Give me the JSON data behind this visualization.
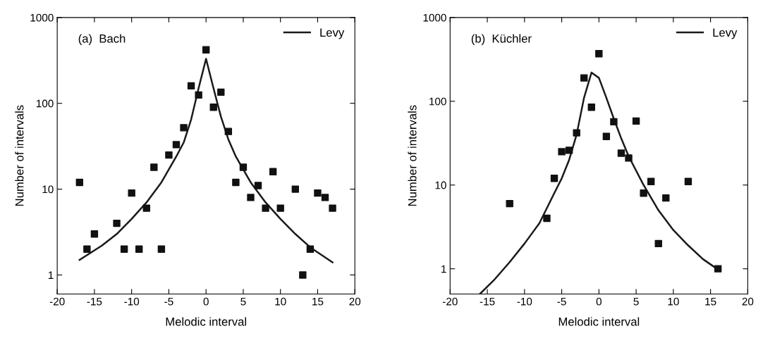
{
  "chart_data": [
    {
      "type": "scatter",
      "xlabel": "Melodic interval",
      "ylabel": "Number of intervals",
      "annotations": [
        "(a)  Bach"
      ],
      "log": "y",
      "xlim": [
        -20,
        20
      ],
      "ylim": [
        0.6,
        1000
      ],
      "xticks": [
        -20,
        -15,
        -10,
        -5,
        0,
        5,
        10,
        15,
        20
      ],
      "yticks": [
        1,
        10,
        100,
        1000
      ],
      "legend": "top right",
      "grid": false,
      "series": [
        {
          "marker": "square",
          "color": "#111111",
          "x": [
            -17,
            -16,
            -15,
            -12,
            -11,
            -10,
            -9,
            -8,
            -7,
            -6,
            -5,
            -4,
            -3,
            -2,
            -1,
            0,
            1,
            2,
            3,
            4,
            5,
            6,
            7,
            8,
            9,
            10,
            12,
            13,
            14,
            15,
            16,
            17
          ],
          "values": [
            12,
            2,
            3,
            4,
            2,
            9,
            2,
            6,
            18,
            2,
            25,
            33,
            52,
            160,
            125,
            420,
            90,
            135,
            47,
            12,
            18,
            8,
            11,
            6,
            16,
            6,
            10,
            1,
            2,
            9,
            8,
            6
          ]
        },
        {
          "type": "line",
          "name": "Levy",
          "marker": "none",
          "line_style": "solid",
          "color": "#1a1a1a",
          "x": [
            -17,
            -14,
            -12,
            -10,
            -8,
            -6,
            -4,
            -3,
            -2,
            -1,
            0,
            1,
            2,
            3,
            4,
            6,
            8,
            10,
            12,
            14,
            17
          ],
          "values": [
            1.5,
            2.2,
            3.0,
            4.5,
            7,
            12,
            24,
            35,
            65,
            150,
            330,
            150,
            70,
            38,
            24,
            12,
            7,
            4.5,
            3.0,
            2.1,
            1.4
          ]
        }
      ]
    },
    {
      "type": "scatter",
      "xlabel": "Melodic interval",
      "ylabel": "Number of intervals",
      "annotations": [
        "(b)  Küchler"
      ],
      "log": "y",
      "xlim": [
        -20,
        20
      ],
      "ylim": [
        0.5,
        1000
      ],
      "xticks": [
        -20,
        -15,
        -10,
        -5,
        0,
        5,
        10,
        15,
        20
      ],
      "yticks": [
        1,
        10,
        100,
        1000
      ],
      "legend": "top right",
      "grid": false,
      "series": [
        {
          "marker": "square",
          "color": "#111111",
          "x": [
            -12,
            -7,
            -6,
            -5,
            -4,
            -3,
            -2,
            -1,
            0,
            1,
            2,
            3,
            4,
            5,
            6,
            7,
            8,
            9,
            12,
            16
          ],
          "values": [
            6,
            4,
            12,
            25,
            26,
            42,
            190,
            85,
            370,
            38,
            57,
            24,
            21,
            58,
            8,
            11,
            2,
            7,
            11,
            1
          ]
        },
        {
          "type": "line",
          "name": "Levy",
          "marker": "none",
          "line_style": "solid",
          "color": "#1a1a1a",
          "x": [
            -16,
            -14,
            -12,
            -10,
            -8,
            -6,
            -5,
            -4,
            -3,
            -2,
            -1,
            0,
            1,
            2,
            3,
            4,
            6,
            8,
            10,
            12,
            14,
            16
          ],
          "values": [
            0.5,
            0.75,
            1.2,
            2,
            3.5,
            8,
            12,
            20,
            40,
            110,
            220,
            190,
            110,
            62,
            36,
            22,
            10,
            5,
            2.9,
            1.9,
            1.3,
            0.98
          ]
        }
      ]
    }
  ]
}
